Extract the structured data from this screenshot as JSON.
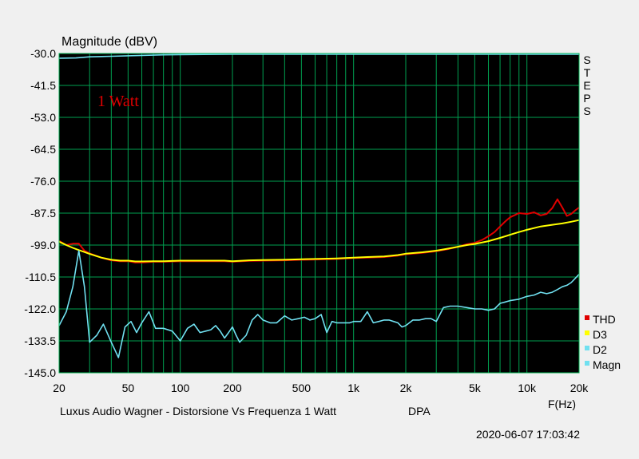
{
  "chart_data": {
    "type": "line",
    "title": "Magnitude (dBV)",
    "annotation": "1 Watt",
    "side_label": "STEPS",
    "xlabel": "F(Hz)",
    "caption_left": "Luxus Audio Wagner - Distorsione Vs Frequenza 1 Watt",
    "caption_right": "DPA",
    "timestamp": "2020-06-07 17:03:42",
    "x_scale": "log",
    "xlim": [
      20,
      20000
    ],
    "ylim": [
      -145.0,
      -30.0
    ],
    "grid": true,
    "legend_position": "bottom-right",
    "x_ticks": [
      {
        "value": 20,
        "label": "20"
      },
      {
        "value": 50,
        "label": "50"
      },
      {
        "value": 100,
        "label": "100"
      },
      {
        "value": 200,
        "label": "200"
      },
      {
        "value": 500,
        "label": "500"
      },
      {
        "value": 1000,
        "label": "1k"
      },
      {
        "value": 2000,
        "label": "2k"
      },
      {
        "value": 5000,
        "label": "5k"
      },
      {
        "value": 10000,
        "label": "10k"
      },
      {
        "value": 20000,
        "label": "20k"
      }
    ],
    "y_ticks": [
      {
        "value": -30.0,
        "label": "-30.0"
      },
      {
        "value": -41.5,
        "label": "-41.5"
      },
      {
        "value": -53.0,
        "label": "-53.0"
      },
      {
        "value": -64.5,
        "label": "-64.5"
      },
      {
        "value": -76.0,
        "label": "-76.0"
      },
      {
        "value": -87.5,
        "label": "-87.5"
      },
      {
        "value": -99.0,
        "label": "-99.0"
      },
      {
        "value": -110.5,
        "label": "-110.5"
      },
      {
        "value": -122.0,
        "label": "-122.0"
      },
      {
        "value": -133.5,
        "label": "-133.5"
      },
      {
        "value": -145.0,
        "label": "-145.0"
      }
    ],
    "series": [
      {
        "name": "THD",
        "color": "#e00000",
        "x": [
          20,
          22,
          24,
          26,
          28,
          30,
          35,
          40,
          45,
          50,
          55,
          60,
          70,
          80,
          100,
          120,
          150,
          180,
          200,
          250,
          300,
          400,
          500,
          600,
          800,
          1000,
          1200,
          1500,
          1800,
          2000,
          2500,
          3000,
          3500,
          4000,
          4500,
          5000,
          5500,
          6000,
          6500,
          7000,
          7500,
          8000,
          9000,
          10000,
          11000,
          12000,
          13000,
          14000,
          15000,
          16000,
          17000,
          18000,
          19000,
          20000
        ],
        "values": [
          -97.5,
          -99.0,
          -98.5,
          -98.5,
          -101.0,
          -102.0,
          -103.5,
          -104.5,
          -104.8,
          -104.8,
          -105.3,
          -105.3,
          -105.0,
          -105.0,
          -104.8,
          -104.8,
          -104.8,
          -104.8,
          -105.0,
          -104.7,
          -104.6,
          -104.5,
          -104.3,
          -104.2,
          -104.0,
          -103.7,
          -103.5,
          -103.3,
          -102.8,
          -102.3,
          -101.8,
          -101.2,
          -100.5,
          -99.6,
          -98.7,
          -98.2,
          -97.2,
          -95.8,
          -94.3,
          -92.3,
          -90.5,
          -89.0,
          -87.5,
          -87.8,
          -87.2,
          -88.3,
          -87.8,
          -85.7,
          -82.5,
          -85.5,
          -88.5,
          -87.8,
          -86.5,
          -85.5
        ]
      },
      {
        "name": "D3",
        "color": "#ffff00",
        "x": [
          20,
          22,
          24,
          26,
          28,
          30,
          35,
          40,
          45,
          50,
          55,
          60,
          70,
          80,
          100,
          120,
          150,
          180,
          200,
          250,
          300,
          400,
          500,
          600,
          800,
          1000,
          1200,
          1500,
          1800,
          2000,
          2500,
          3000,
          3500,
          4000,
          4500,
          5000,
          6000,
          7000,
          8000,
          9000,
          10000,
          12000,
          14000,
          16000,
          18000,
          20000
        ],
        "values": [
          -97.8,
          -99.0,
          -100.0,
          -100.8,
          -101.5,
          -102.2,
          -103.5,
          -104.3,
          -104.6,
          -104.6,
          -104.9,
          -104.9,
          -104.8,
          -104.8,
          -104.6,
          -104.6,
          -104.6,
          -104.6,
          -104.8,
          -104.5,
          -104.4,
          -104.3,
          -104.1,
          -104.0,
          -103.8,
          -103.5,
          -103.3,
          -103.1,
          -102.6,
          -102.1,
          -101.6,
          -101.0,
          -100.3,
          -99.6,
          -99.0,
          -98.6,
          -97.6,
          -96.4,
          -95.3,
          -94.3,
          -93.5,
          -92.3,
          -91.7,
          -91.2,
          -90.6,
          -90.0
        ]
      },
      {
        "name": "D2",
        "color": "#70e0f0",
        "x": [
          20,
          22,
          24,
          26,
          28,
          30,
          33,
          36,
          40,
          44,
          48,
          52,
          56,
          60,
          66,
          72,
          80,
          90,
          100,
          110,
          120,
          130,
          140,
          150,
          160,
          170,
          180,
          190,
          200,
          210,
          220,
          240,
          260,
          280,
          300,
          330,
          360,
          400,
          440,
          480,
          520,
          560,
          600,
          650,
          700,
          750,
          800,
          850,
          900,
          950,
          1000,
          1100,
          1200,
          1300,
          1400,
          1500,
          1600,
          1700,
          1800,
          1900,
          2000,
          2200,
          2400,
          2600,
          2800,
          3000,
          3300,
          3600,
          4000,
          4500,
          5000,
          5500,
          6000,
          6500,
          7000,
          7500,
          8000,
          9000,
          10000,
          11000,
          12000,
          13000,
          14000,
          15000,
          16000,
          17000,
          18000,
          19000,
          20000
        ],
        "values": [
          -128.0,
          -123.0,
          -114.0,
          -101.0,
          -114.0,
          -134.0,
          -131.5,
          -127.5,
          -134.0,
          -139.5,
          -128.5,
          -126.5,
          -130.5,
          -127.0,
          -123.0,
          -129.0,
          -129.0,
          -130.0,
          -133.5,
          -129.0,
          -127.5,
          -130.5,
          -130.0,
          -129.5,
          -128.0,
          -130.0,
          -132.5,
          -130.5,
          -128.5,
          -131.5,
          -134.0,
          -131.5,
          -126.0,
          -124.0,
          -126.0,
          -127.0,
          -127.0,
          -124.5,
          -126.0,
          -125.5,
          -125.0,
          -126.0,
          -125.5,
          -124.0,
          -130.5,
          -126.5,
          -127.0,
          -127.0,
          -127.0,
          -127.0,
          -126.5,
          -126.5,
          -123.0,
          -127.0,
          -126.5,
          -126.0,
          -126.0,
          -126.5,
          -127.0,
          -128.5,
          -128.0,
          -126.0,
          -126.0,
          -125.5,
          -125.5,
          -126.5,
          -121.5,
          -121.0,
          -121.0,
          -121.5,
          -122.0,
          -122.0,
          -122.5,
          -122.0,
          -120.0,
          -119.5,
          -119.0,
          -118.5,
          -117.5,
          -117.0,
          -116.0,
          -116.5,
          -116.0,
          -115.0,
          -114.0,
          -113.5,
          -112.5,
          -111.0,
          -109.5
        ]
      },
      {
        "name": "Magn",
        "color": "#70e0f0",
        "x": [
          20,
          25,
          30,
          40,
          60,
          80,
          100,
          200,
          500,
          1000,
          5000,
          20000
        ],
        "values": [
          -31.7,
          -31.6,
          -31.2,
          -31.0,
          -30.7,
          -30.5,
          -30.4,
          -30.3,
          -30.3,
          -30.3,
          -30.3,
          -30.3
        ]
      }
    ]
  }
}
